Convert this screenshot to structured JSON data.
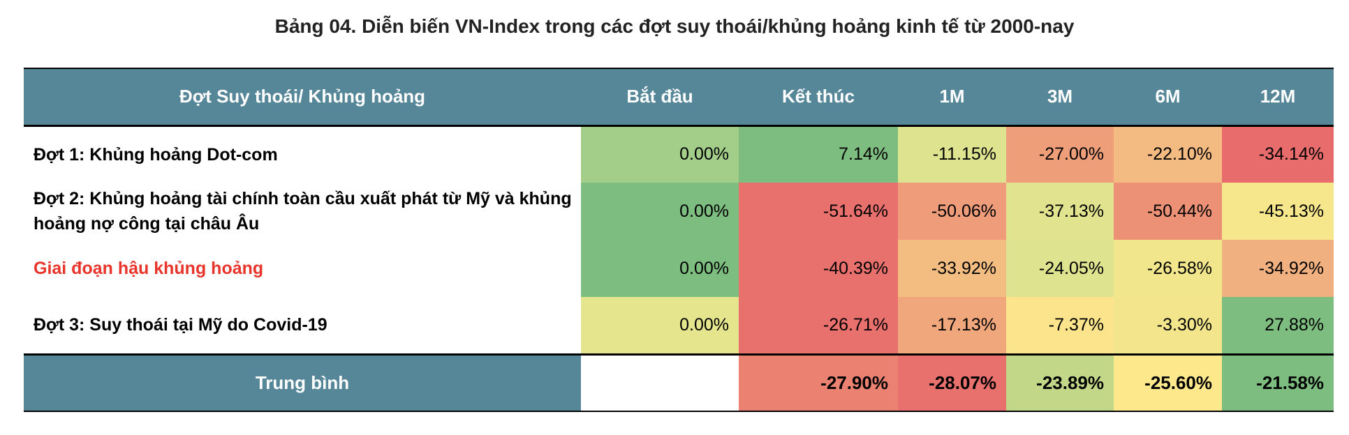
{
  "title": "Bảng 04. Diễn biến VN-Index trong các đợt suy thoái/khủng hoảng kinh tế từ 2000-nay",
  "colors": {
    "header_bg": "#568799",
    "avg_row_label_color": "#ffffff",
    "highlight_text": "#e8342a"
  },
  "table": {
    "headers": [
      "Đợt Suy thoái/ Khủng hoảng",
      "Bắt đầu",
      "Kết thúc",
      "1M",
      "3M",
      "6M",
      "12M"
    ],
    "rows": [
      {
        "label": "Đợt 1: Khủng hoảng Dot-com",
        "values": [
          "0.00%",
          "7.14%",
          "-11.15%",
          "-27.00%",
          "-22.10%",
          "-34.14%"
        ],
        "colors": [
          "#a2ce89",
          "#7dbe80",
          "#dde38e",
          "#ee9f7a",
          "#f3bb82",
          "#e76c6b"
        ]
      },
      {
        "label": "Đợt 2: Khủng hoảng tài chính toàn cầu xuất phát từ Mỹ và khủng hoảng nợ công tại châu Âu",
        "values": [
          "0.00%",
          "-51.64%",
          "-50.06%",
          "-37.13%",
          "-50.44%",
          "-45.13%"
        ],
        "colors": [
          "#7dbe80",
          "#e8706d",
          "#ee9c7a",
          "#e1e38f",
          "#ec9175",
          "#f7e78c"
        ]
      },
      {
        "label": "Giai đoạn hậu khủng hoảng",
        "values": [
          "0.00%",
          "-40.39%",
          "-33.92%",
          "-24.05%",
          "-26.58%",
          "-34.92%"
        ],
        "colors": [
          "#7dbe80",
          "#e8706d",
          "#f3bd82",
          "#dde38e",
          "#f1e68c",
          "#f1b07f"
        ]
      },
      {
        "label": "Đợt 3: Suy thoái tại Mỹ do Covid-19",
        "values": [
          "0.00%",
          "-26.71%",
          "-17.13%",
          "-7.37%",
          "-3.30%",
          "27.88%"
        ],
        "colors": [
          "#e5e58e",
          "#e8706d",
          "#f0a77c",
          "#fbe48b",
          "#f2e58c",
          "#7dbe80"
        ]
      }
    ],
    "average": {
      "label": "Trung bình",
      "values": [
        "",
        "-27.90%",
        "-28.07%",
        "-23.89%",
        "-25.60%",
        "-21.58%"
      ],
      "colors": [
        "#ffffff",
        "#eb8271",
        "#e8706d",
        "#c2d888",
        "#fde98c",
        "#7dbe80"
      ]
    }
  }
}
